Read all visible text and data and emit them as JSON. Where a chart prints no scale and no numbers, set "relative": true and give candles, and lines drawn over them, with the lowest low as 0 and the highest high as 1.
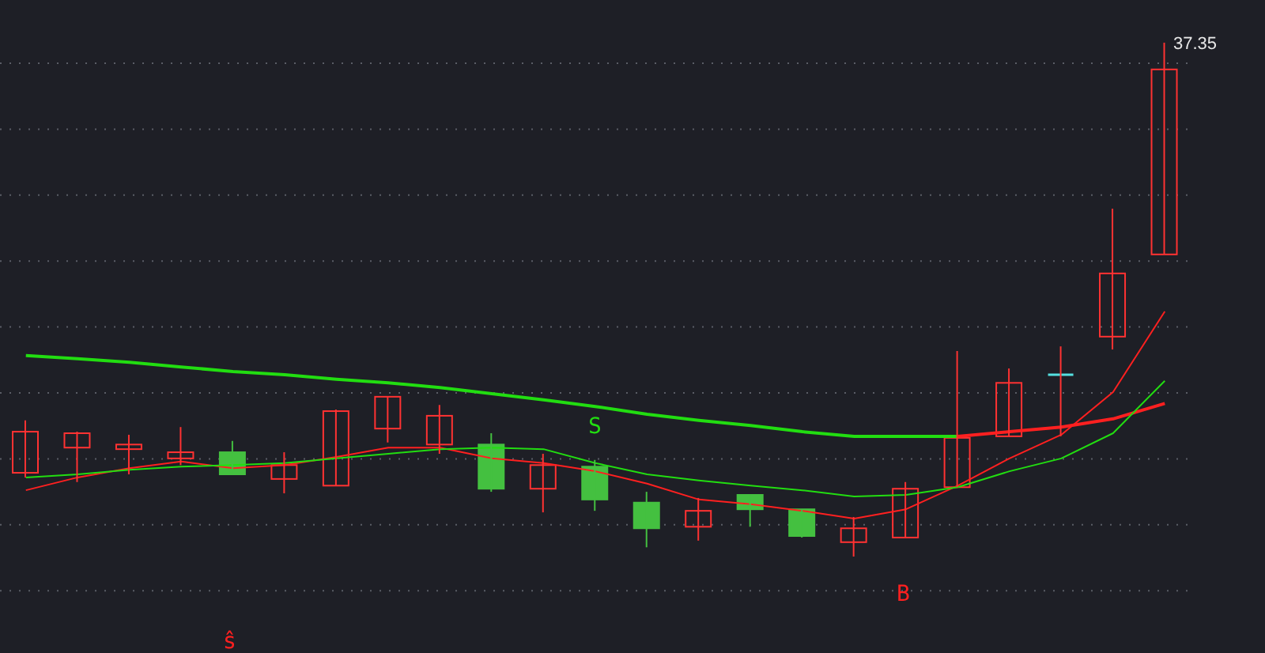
{
  "chart_data": {
    "type": "candlestick",
    "relative": true,
    "grid": "y",
    "categories": [
      null,
      null,
      null,
      null,
      null,
      null,
      null,
      null,
      null,
      null,
      null,
      null,
      null,
      null,
      null,
      null,
      null,
      null,
      null,
      null,
      null,
      null,
      null
    ],
    "ohlc": [
      [
        0.163,
        0.265,
        0.154,
        0.243
      ],
      [
        0.212,
        0.243,
        0.145,
        0.24
      ],
      [
        0.209,
        0.237,
        0.16,
        0.218
      ],
      [
        0.191,
        0.252,
        0.178,
        0.203
      ],
      [
        0.203,
        0.225,
        0.16,
        0.16
      ],
      [
        0.151,
        0.203,
        0.123,
        0.178
      ],
      [
        0.138,
        0.286,
        0.138,
        0.283
      ],
      [
        0.249,
        0.311,
        0.222,
        0.311
      ],
      [
        0.218,
        0.295,
        0.2,
        0.274
      ],
      [
        0.218,
        0.24,
        0.126,
        0.132
      ],
      [
        0.132,
        0.2,
        0.086,
        0.178
      ],
      [
        0.175,
        0.188,
        0.089,
        0.111
      ],
      [
        0.105,
        0.126,
        0.018,
        0.055
      ],
      [
        0.058,
        0.114,
        0.031,
        0.089
      ],
      [
        0.12,
        0.12,
        0.058,
        0.092
      ],
      [
        0.092,
        0.092,
        0.037,
        0.04
      ],
      [
        0.028,
        0.077,
        0,
        0.055
      ],
      [
        0.037,
        0.145,
        0.037,
        0.132
      ],
      [
        0.135,
        0.4,
        0.135,
        0.231
      ],
      [
        0.234,
        0.366,
        0.234,
        0.338
      ],
      [
        0.354,
        0.409,
        0.234,
        0.354
      ],
      [
        0.428,
        0.677,
        0.403,
        0.551
      ],
      [
        0.588,
        1,
        0.588,
        0.948
      ]
    ],
    "series": [
      {
        "type": "line",
        "color": "#22dd11",
        "values": [
          0.391,
          0.385,
          0.378,
          0.369,
          0.36,
          0.354,
          0.345,
          0.338,
          0.329,
          0.317,
          0.305,
          0.292,
          0.277,
          0.265,
          0.255,
          0.243,
          0.234,
          0.234,
          0.234,
          null,
          null,
          null,
          null
        ]
      },
      {
        "type": "line",
        "color": "#ff2020",
        "values": [
          null,
          null,
          null,
          null,
          null,
          null,
          null,
          null,
          null,
          null,
          null,
          null,
          null,
          null,
          null,
          null,
          null,
          null,
          0.234,
          0.243,
          0.252,
          0.268,
          0.298
        ]
      },
      {
        "type": "line",
        "color": "#ff2020",
        "values": [
          0.129,
          0.154,
          0.172,
          0.185,
          0.172,
          0.178,
          0.194,
          0.212,
          0.212,
          0.191,
          0.182,
          0.166,
          0.142,
          0.111,
          0.102,
          0.089,
          0.074,
          0.092,
          0.138,
          0.191,
          0.237,
          0.32,
          0.477
        ]
      },
      {
        "type": "line",
        "color": "#22dd11",
        "values": [
          0.154,
          0.16,
          0.169,
          0.175,
          0.178,
          0.182,
          0.191,
          0.2,
          0.209,
          0.212,
          0.209,
          0.182,
          0.16,
          0.148,
          0.138,
          0.129,
          0.117,
          0.12,
          0.135,
          0.166,
          0.191,
          0.24,
          0.342
        ]
      }
    ],
    "annotations": [
      "37.35",
      "S",
      "B",
      "ŝ"
    ]
  }
}
